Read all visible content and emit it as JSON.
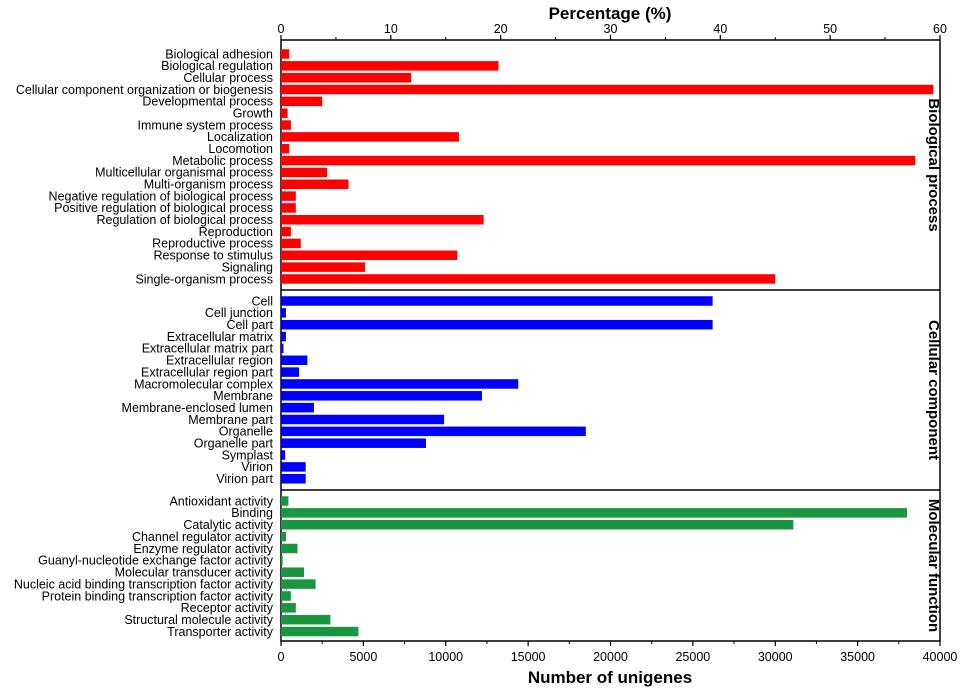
{
  "chart_data": {
    "type": "bar",
    "orientation": "horizontal",
    "xlabel_bottom": "Number of unigenes",
    "xlabel_top": "Percentage (%)",
    "xlim_bottom": [
      0,
      40000
    ],
    "xticks_bottom": [
      "0",
      "5000",
      "10000",
      "15000",
      "20000",
      "25000",
      "30000",
      "35000",
      "40000"
    ],
    "xlim_top": [
      0,
      60
    ],
    "xticks_top": [
      "0",
      "10",
      "20",
      "30",
      "40",
      "50",
      "60"
    ],
    "groups": [
      {
        "name": "Biological process",
        "color": "#ff0000",
        "categories": [
          "Biological adhesion",
          "Biological regulation",
          "Cellular process",
          "Cellular component organization or biogenesis",
          "Developmental process",
          "Growth",
          "Immune system process",
          "Localization",
          "Locomotion",
          "Metabolic process",
          "Multicellular organismal process",
          "Multi-organism process",
          "Negative regulation of biological process",
          "Positive regulation of biological process",
          "Regulation of biological process",
          "Reproduction",
          "Reproductive process",
          "Response to stimulus",
          "Signaling",
          "Single-organism process"
        ],
        "values": [
          500,
          13200,
          7900,
          39600,
          2500,
          400,
          600,
          10800,
          500,
          38500,
          2800,
          4100,
          900,
          900,
          12300,
          600,
          1200,
          10700,
          5100,
          30000
        ]
      },
      {
        "name": "Cellular component",
        "color": "#0000ff",
        "categories": [
          "Cell",
          "Cell junction",
          "Cell part",
          "Extracellular matrix",
          "Extracellular matrix part",
          "Extracellular region",
          "Extracellular region part",
          "Macromolecular complex",
          "Membrane",
          "Membrane-enclosed lumen",
          "Membrane part",
          "Organelle",
          "Organelle part",
          "Symplast",
          "Virion",
          "Virion part"
        ],
        "values": [
          26200,
          300,
          26200,
          300,
          150,
          1600,
          1100,
          14400,
          12200,
          2000,
          9900,
          18500,
          8800,
          250,
          1500,
          1500
        ]
      },
      {
        "name": "Molecular function",
        "color": "#1a9641",
        "categories": [
          "Antioxidant activity",
          "Binding",
          "Catalytic activity",
          "Channel regulator activity",
          "Enzyme regulator activity",
          "Guanyl-nucleotide exchange factor activity",
          "Molecular transducer activity",
          "Nucleic acid binding transcription factor activity",
          "Protein binding transcription factor activity",
          "Receptor activity",
          "Structural molecule activity",
          "Transporter activity"
        ],
        "values": [
          450,
          38000,
          31100,
          300,
          1000,
          100,
          1400,
          2100,
          600,
          900,
          3000,
          4700
        ]
      }
    ]
  }
}
